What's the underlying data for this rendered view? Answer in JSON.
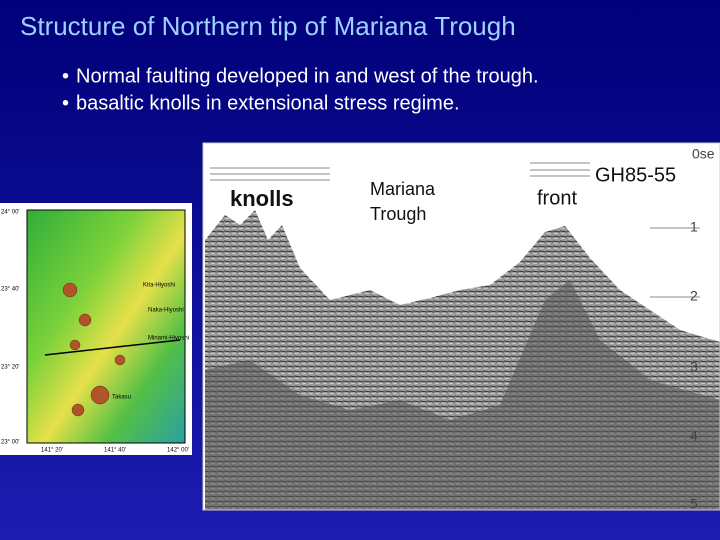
{
  "slide": {
    "title": "Structure of Northern tip of Mariana Trough",
    "bullets": [
      "Normal faulting developed in and west of the trough.",
      "basaltic knolls in extensional stress regime."
    ]
  },
  "profile": {
    "name": "GH85-55",
    "labels": [
      "knolls",
      "Mariana",
      "Trough",
      "front"
    ],
    "depth_axis": [
      "0se",
      "1",
      "2",
      "3",
      "4",
      "5"
    ]
  },
  "map": {
    "places": [
      "Kita-Hiyoshi",
      "Naka-Hiyoshi",
      "Minami-Hiyoshi",
      "Takasu"
    ],
    "lat": [
      "24° 00'",
      "23° 40'",
      "23° 20'",
      "23° 00'"
    ],
    "lon": [
      "141° 20'",
      "141° 40'",
      "142° 00'"
    ]
  }
}
